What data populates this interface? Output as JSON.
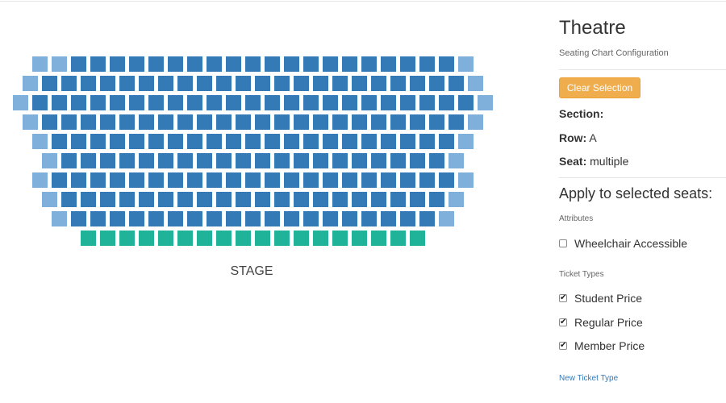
{
  "seat_map": {
    "stage_label": "STAGE",
    "colors": {
      "standard": "#337ab7",
      "end_seat": "#7fb0dc",
      "front_tier": "#1fb49a"
    },
    "rows": [
      {
        "seats": 23,
        "end_seats_left": 2,
        "end_seats_right": 1,
        "tier": "standard"
      },
      {
        "seats": 24,
        "end_seats_left": 1,
        "end_seats_right": 1,
        "tier": "standard"
      },
      {
        "seats": 25,
        "end_seats_left": 1,
        "end_seats_right": 1,
        "tier": "standard"
      },
      {
        "seats": 24,
        "end_seats_left": 1,
        "end_seats_right": 1,
        "tier": "standard"
      },
      {
        "seats": 23,
        "end_seats_left": 1,
        "end_seats_right": 1,
        "tier": "standard"
      },
      {
        "seats": 22,
        "end_seats_left": 1,
        "end_seats_right": 1,
        "tier": "standard"
      },
      {
        "seats": 23,
        "end_seats_left": 1,
        "end_seats_right": 1,
        "tier": "standard"
      },
      {
        "seats": 22,
        "end_seats_left": 1,
        "end_seats_right": 1,
        "tier": "standard"
      },
      {
        "seats": 21,
        "end_seats_left": 1,
        "end_seats_right": 1,
        "tier": "standard"
      },
      {
        "seats": 18,
        "end_seats_left": 0,
        "end_seats_right": 0,
        "tier": "front"
      }
    ]
  },
  "panel": {
    "title": "Theatre",
    "subtitle": "Seating Chart Configuration",
    "clear_button": "Clear Selection",
    "section": {
      "label": "Section:",
      "value": ""
    },
    "row": {
      "label": "Row:",
      "value": "A"
    },
    "seat": {
      "label": "Seat:",
      "value": "multiple"
    },
    "apply_heading": "Apply to selected seats:",
    "attributes_label": "Attributes",
    "attributes": [
      {
        "label": "Wheelchair Accessible",
        "checked": false
      }
    ],
    "ticket_types_label": "Ticket Types",
    "ticket_types": [
      {
        "label": "Student Price",
        "checked": true
      },
      {
        "label": "Regular Price",
        "checked": true
      },
      {
        "label": "Member Price",
        "checked": true
      }
    ],
    "new_ticket_link": "New Ticket Type"
  }
}
